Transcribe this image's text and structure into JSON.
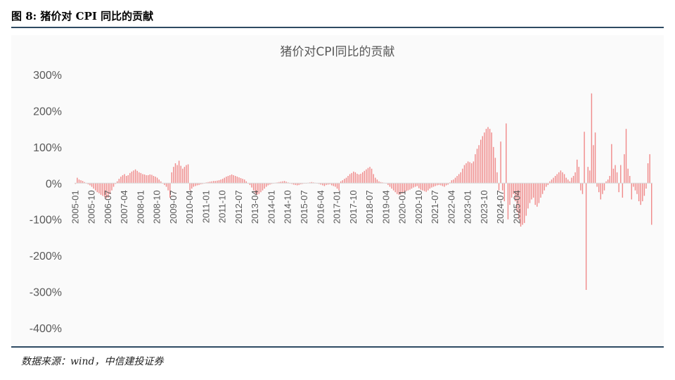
{
  "figure": {
    "title": "图 8:  猪价对 CPI 同比的贡献",
    "source": "数据来源：wind，中信建投证券"
  },
  "colors": {
    "bar": "#f08a8a",
    "axis": "#d9d9d9",
    "rule": "#2e4a62"
  },
  "chart_data": {
    "type": "bar",
    "title": "猪价对CPI同比的贡献",
    "ylim": [
      -400,
      300
    ],
    "yticks": [
      300,
      200,
      100,
      0,
      -100,
      -200,
      -300,
      -400
    ],
    "ytick_labels": [
      "300%",
      "200%",
      "100%",
      "0%",
      "-100%",
      "-200%",
      "-300%",
      "-400%"
    ],
    "xtick_labels": [
      "2005-01",
      "2005-10",
      "2006-07",
      "2007-04",
      "2008-01",
      "2008-10",
      "2009-07",
      "2010-04",
      "2011-01",
      "2011-10",
      "2012-07",
      "2013-04",
      "2014-01",
      "2014-10",
      "2015-07",
      "2016-04",
      "2017-01",
      "2017-10",
      "2018-07",
      "2019-04",
      "2020-01",
      "2020-10",
      "2021-07",
      "2022-04",
      "2023-01",
      "2023-10",
      "2024-07",
      "2025-04"
    ],
    "x_start": "2005-01",
    "frequency": "monthly",
    "grid": false,
    "values": [
      -2,
      15,
      10,
      8,
      6,
      3,
      0,
      -3,
      -6,
      -10,
      -15,
      -20,
      -25,
      -28,
      -32,
      -35,
      -38,
      -42,
      -40,
      -30,
      -20,
      -10,
      -2,
      5,
      12,
      18,
      22,
      25,
      20,
      22,
      28,
      32,
      35,
      38,
      34,
      30,
      28,
      25,
      24,
      22,
      22,
      24,
      23,
      20,
      18,
      15,
      10,
      5,
      0,
      -5,
      -10,
      -20,
      -40,
      30,
      45,
      55,
      50,
      62,
      48,
      40,
      45,
      50,
      52,
      -20,
      -15,
      -10,
      -8,
      -6,
      -5,
      -3,
      -2,
      0,
      2,
      3,
      4,
      5,
      6,
      6,
      7,
      8,
      10,
      12,
      15,
      18,
      20,
      22,
      24,
      22,
      20,
      18,
      16,
      14,
      12,
      10,
      5,
      0,
      -5,
      -12,
      -20,
      -28,
      -32,
      -30,
      -25,
      -20,
      -15,
      -10,
      -6,
      -4,
      -2,
      0,
      1,
      2,
      3,
      4,
      5,
      6,
      4,
      2,
      0,
      -2,
      -4,
      -5,
      -6,
      -5,
      -3,
      -2,
      -1,
      0,
      1,
      2,
      3,
      2,
      1,
      0,
      -2,
      -4,
      -6,
      -8,
      -5,
      -4,
      -3,
      -6,
      -8,
      -10,
      -15,
      -20,
      5,
      8,
      12,
      15,
      20,
      25,
      28,
      32,
      30,
      26,
      24,
      26,
      30,
      34,
      38,
      42,
      45,
      40,
      25,
      15,
      10,
      5,
      3,
      2,
      1,
      0,
      -5,
      -10,
      -15,
      -20,
      -25,
      -30,
      -32,
      -30,
      -28,
      -25,
      -22,
      -20,
      -18,
      -15,
      -12,
      -10,
      -8,
      -14,
      -18,
      -20,
      -22,
      -24,
      -20,
      -15,
      -12,
      -10,
      -8,
      -6,
      -5,
      -6,
      -8,
      -10,
      -6,
      -4,
      2,
      8,
      10,
      15,
      20,
      25,
      30,
      40,
      50,
      55,
      60,
      58,
      55,
      60,
      80,
      95,
      105,
      120,
      130,
      140,
      150,
      155,
      150,
      140,
      100,
      70,
      30,
      -20,
      115,
      -20,
      -50,
      165,
      -100,
      -60,
      -40,
      -30,
      -50,
      -80,
      -100,
      -120,
      -115,
      -110,
      -90,
      -70,
      -55,
      -45,
      -40,
      -60,
      -65,
      -55,
      -40,
      -30,
      -20,
      -10,
      -5,
      5,
      10,
      15,
      20,
      25,
      30,
      35,
      30,
      25,
      15,
      10,
      5,
      15,
      20,
      30,
      65,
      45,
      -20,
      -30,
      142,
      -295,
      45,
      35,
      248,
      105,
      140,
      -10,
      -25,
      -45,
      -30,
      -20,
      5,
      10,
      20,
      108,
      40,
      50,
      30,
      -25,
      50,
      -40,
      80,
      150,
      40,
      20,
      -45,
      -10,
      -20,
      -30,
      -50,
      -60,
      -50,
      -35,
      -15,
      55,
      80,
      -115
    ]
  }
}
